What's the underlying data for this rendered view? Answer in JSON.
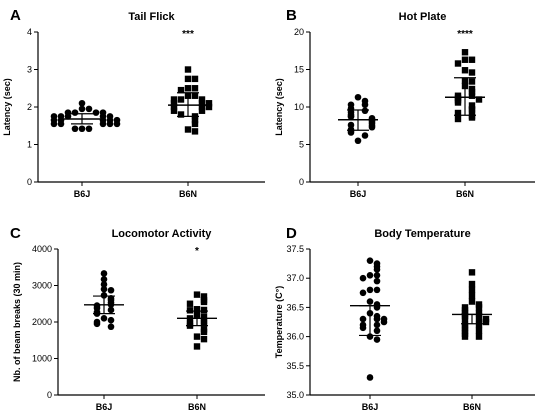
{
  "chart_data": [
    {
      "panel": "A",
      "type": "scatter",
      "title": "Tail Flick",
      "ylabel": "Latency (sec)",
      "ylim": [
        0,
        4
      ],
      "yticks": [
        0,
        1,
        2,
        3,
        4
      ],
      "categories": [
        "B6J",
        "B6N"
      ],
      "markers": [
        "circle",
        "square"
      ],
      "significance": [
        "",
        "***"
      ],
      "summary": [
        {
          "mean": 1.68,
          "low": 1.55,
          "high": 1.82
        },
        {
          "mean": 2.05,
          "low": 1.75,
          "high": 2.38
        }
      ],
      "series": [
        {
          "values": [
            2.1,
            1.95,
            1.95,
            1.85,
            1.85,
            1.85,
            1.85,
            1.75,
            1.75,
            1.75,
            1.75,
            1.75,
            1.65,
            1.65,
            1.65,
            1.65,
            1.65,
            1.55,
            1.55,
            1.55,
            1.55,
            1.55,
            1.42,
            1.42,
            1.42
          ]
        },
        {
          "values": [
            3.0,
            2.75,
            2.75,
            2.5,
            2.5,
            2.45,
            2.3,
            2.3,
            2.2,
            2.2,
            2.2,
            2.1,
            2.1,
            2.1,
            2.0,
            2.0,
            2.0,
            1.9,
            1.9,
            1.8,
            1.75,
            1.65,
            1.55,
            1.4,
            1.35
          ]
        }
      ]
    },
    {
      "panel": "B",
      "type": "scatter",
      "title": "Hot Plate",
      "ylabel": "Latency (sec)",
      "ylim": [
        0,
        20
      ],
      "yticks": [
        0,
        5,
        10,
        15,
        20
      ],
      "categories": [
        "B6J",
        "B6N"
      ],
      "markers": [
        "circle",
        "square"
      ],
      "significance": [
        "",
        "****"
      ],
      "summary": [
        {
          "mean": 8.3,
          "low": 6.9,
          "high": 9.6
        },
        {
          "mean": 11.3,
          "low": 8.9,
          "high": 13.9
        }
      ],
      "series": [
        {
          "values": [
            11.3,
            10.8,
            10.3,
            10.3,
            9.8,
            9.5,
            9.3,
            9.0,
            8.8,
            8.7,
            8.5,
            8.3,
            8.2,
            8.0,
            7.8,
            7.6,
            7.5,
            7.3,
            7.0,
            6.8,
            6.6,
            6.2,
            5.5
          ]
        },
        {
          "values": [
            17.3,
            16.3,
            16.3,
            15.8,
            14.9,
            14.6,
            13.5,
            13.4,
            12.8,
            12.4,
            12.0,
            11.5,
            11.5,
            11.2,
            11.0,
            10.9,
            10.6,
            10.2,
            9.7,
            9.6,
            9.2,
            8.8,
            8.6,
            8.4
          ]
        }
      ]
    },
    {
      "panel": "C",
      "type": "scatter",
      "title": "Locomotor Activity",
      "ylabel": "Nb. of beam breaks (30 min)",
      "ylim": [
        0,
        4000
      ],
      "yticks": [
        0,
        1000,
        2000,
        3000,
        4000
      ],
      "categories": [
        "B6J",
        "B6N"
      ],
      "markers": [
        "circle",
        "square"
      ],
      "significance": [
        "",
        "*"
      ],
      "summary": [
        {
          "mean": 2470,
          "low": 2230,
          "high": 2710
        },
        {
          "mean": 2100,
          "low": 1900,
          "high": 2300
        }
      ],
      "series": [
        {
          "values": [
            3330,
            3170,
            3030,
            2900,
            2870,
            2730,
            2650,
            2600,
            2530,
            2480,
            2450,
            2380,
            2330,
            2270,
            2230,
            2100,
            2050,
            2000,
            1950,
            1870
          ]
        },
        {
          "values": [
            2750,
            2700,
            2600,
            2550,
            2500,
            2350,
            2330,
            2320,
            2200,
            2150,
            2100,
            2020,
            1970,
            1950,
            1900,
            1800,
            1730,
            1600,
            1530,
            1330
          ]
        }
      ]
    },
    {
      "panel": "D",
      "type": "scatter",
      "title": "Body Temperature",
      "ylabel": "Temperature (C°)",
      "ylim": [
        35.0,
        37.5
      ],
      "yticks": [
        35.0,
        35.5,
        36.0,
        36.5,
        37.0,
        37.5
      ],
      "categories": [
        "B6J",
        "B6N"
      ],
      "markers": [
        "circle",
        "square"
      ],
      "significance": [
        "",
        ""
      ],
      "summary": [
        {
          "mean": 36.53,
          "low": 36.02,
          "high": 36.53
        },
        {
          "mean": 36.38,
          "low": 36.22,
          "high": 36.38
        }
      ],
      "series": [
        {
          "values": [
            37.3,
            37.25,
            37.2,
            37.15,
            37.05,
            37.05,
            37.0,
            36.95,
            36.8,
            36.8,
            36.75,
            36.6,
            36.55,
            36.5,
            36.4,
            36.35,
            36.3,
            36.3,
            36.3,
            36.25,
            36.2,
            36.2,
            36.15,
            36.1,
            36.0,
            35.95,
            35.3
          ]
        },
        {
          "values": [
            37.1,
            36.9,
            36.8,
            36.7,
            36.6,
            36.55,
            36.5,
            36.5,
            36.45,
            36.4,
            36.4,
            36.35,
            36.3,
            36.3,
            36.3,
            36.25,
            36.2,
            36.2,
            36.15,
            36.1,
            36.1,
            36.05,
            36.0,
            36.0
          ]
        }
      ]
    }
  ]
}
